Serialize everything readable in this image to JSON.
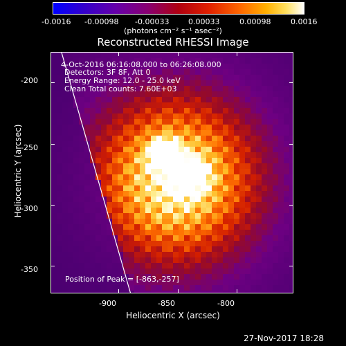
{
  "colorbar": {
    "ticks": [
      "-0.0016",
      "-0.00098",
      "-0.00033",
      "0.00033",
      "0.00098",
      "0.0016"
    ],
    "units": "(photons cm⁻² s⁻¹ asec⁻²)"
  },
  "plot": {
    "title": "Reconstructed RHESSI Image",
    "info_lines": [
      "4-Oct-2016 06:16:08.000 to 06:26:08.000",
      "Detectors: 3F 8F, Att 0",
      "Energy Range: 12.0 - 25.0 keV",
      "Clean     Total counts: 7.60E+03"
    ],
    "peak_label": "Position of Peak = [-863,-257]",
    "xlabel": "Heliocentric X (arcsec)",
    "ylabel": "Heliocentric Y (arcsec)",
    "xticks": [
      "-900",
      "-850",
      "-800"
    ],
    "yticks": [
      "-200",
      "-250",
      "-300",
      "-350"
    ]
  },
  "footer": {
    "date": "27-Nov-2017 18:28"
  }
}
